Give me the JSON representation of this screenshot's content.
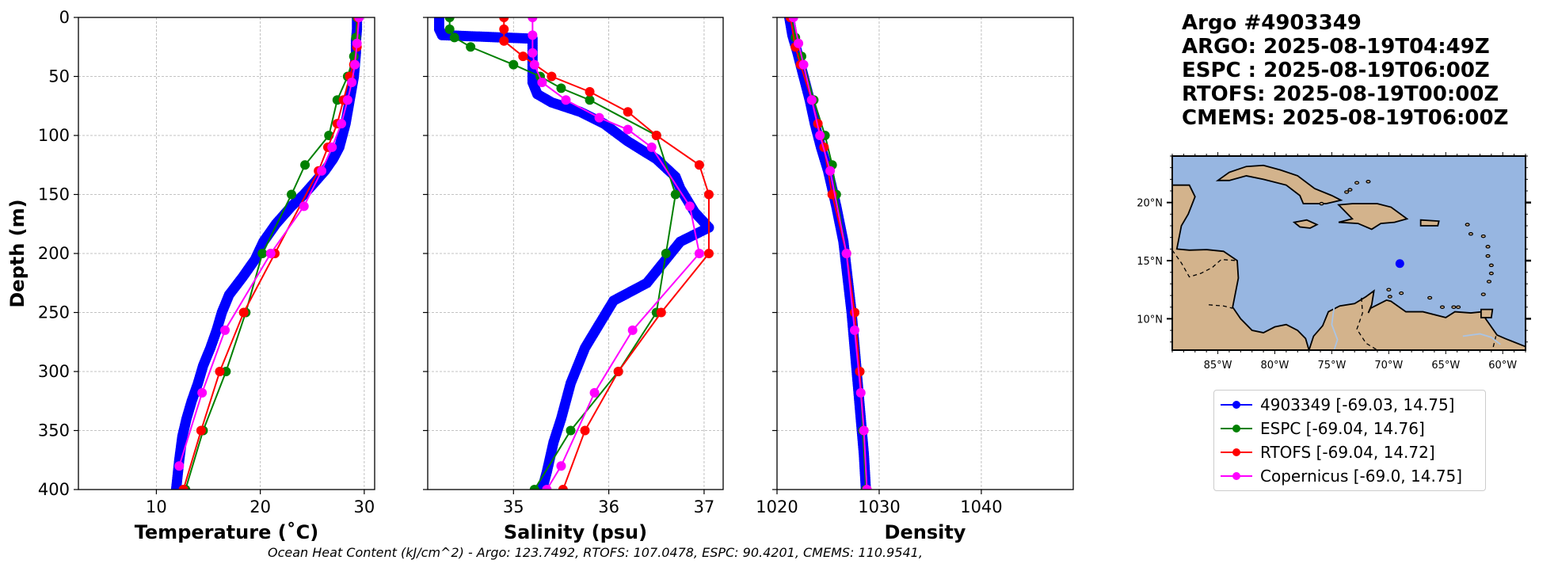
{
  "chart_data": [
    {
      "type": "line",
      "panel": "temperature",
      "xlabel": "Temperature (˚C)",
      "ylabel": "Depth (m)",
      "xlim": [
        2.5,
        31
      ],
      "ylim": [
        400,
        0
      ],
      "xticks": [
        10,
        20,
        30
      ],
      "yticks": [
        0,
        50,
        100,
        150,
        200,
        250,
        300,
        350,
        400
      ],
      "grid": true,
      "series": [
        {
          "name": "4903349",
          "color": "#0000ff",
          "markers": "dense",
          "x": [
            29.3,
            29.3,
            29.2,
            29.2,
            29.1,
            29.0,
            28.8,
            28.6,
            28.4,
            28.2,
            27.9,
            27.6,
            27.0,
            26.2,
            25.2,
            24.2,
            23.0,
            21.5,
            20.3,
            19.5,
            18.3,
            17.0,
            16.3,
            15.8,
            15.2,
            14.5,
            14.0,
            13.4,
            12.9,
            12.5,
            12.2,
            11.9
          ],
          "y": [
            0,
            10,
            20,
            30,
            40,
            50,
            60,
            70,
            80,
            90,
            100,
            110,
            120,
            130,
            140,
            150,
            160,
            175,
            190,
            205,
            220,
            235,
            250,
            265,
            280,
            295,
            310,
            325,
            340,
            355,
            375,
            400
          ]
        },
        {
          "name": "ESPC",
          "color": "#008000",
          "markers": "sparse",
          "x": [
            29.3,
            29.2,
            29.0,
            28.4,
            27.4,
            26.6,
            24.3,
            23.0,
            20.2,
            18.6,
            16.7,
            14.5,
            12.8
          ],
          "y": [
            0,
            17,
            33,
            50,
            70,
            100,
            125,
            150,
            200,
            250,
            300,
            350,
            400
          ]
        },
        {
          "name": "RTOFS",
          "color": "#ff0000",
          "markers": "sparse",
          "x": [
            29.4,
            29.3,
            29.0,
            28.6,
            28.0,
            27.4,
            26.5,
            25.6,
            21.4,
            18.4,
            16.1,
            14.3,
            12.6
          ],
          "y": [
            0,
            25,
            40,
            50,
            70,
            90,
            110,
            130,
            200,
            250,
            300,
            350,
            400
          ]
        },
        {
          "name": "Copernicus",
          "color": "#ff00ff",
          "markers": "sparse",
          "x": [
            29.5,
            29.3,
            29.1,
            28.8,
            28.4,
            27.8,
            26.9,
            25.9,
            24.2,
            21.0,
            16.6,
            14.4,
            12.2
          ],
          "y": [
            0,
            22,
            40,
            55,
            70,
            90,
            110,
            130,
            160,
            200,
            265,
            318,
            380
          ]
        }
      ]
    },
    {
      "type": "line",
      "panel": "salinity",
      "xlabel": "Salinity (psu)",
      "xlim": [
        34.1,
        37.2
      ],
      "ylim": [
        400,
        0
      ],
      "xticks": [
        35,
        36,
        37
      ],
      "grid": true,
      "series": [
        {
          "name": "4903349",
          "color": "#0000ff",
          "markers": "dense",
          "x": [
            34.22,
            34.22,
            34.25,
            35.2,
            35.2,
            35.2,
            35.25,
            35.4,
            35.7,
            35.95,
            36.2,
            36.5,
            36.7,
            36.75,
            36.9,
            37.05,
            36.75,
            36.55,
            36.4,
            36.05,
            35.9,
            35.75,
            35.6,
            35.5,
            35.42,
            35.35,
            35.3
          ],
          "y": [
            0,
            10,
            15,
            18,
            30,
            55,
            65,
            72,
            80,
            90,
            105,
            120,
            135,
            145,
            165,
            178,
            190,
            210,
            225,
            240,
            260,
            280,
            310,
            340,
            360,
            385,
            400
          ]
        },
        {
          "name": "ESPC",
          "color": "#008000",
          "markers": "sparse",
          "x": [
            34.33,
            34.33,
            34.38,
            34.55,
            35.0,
            35.28,
            35.5,
            35.8,
            36.5,
            36.7,
            36.6,
            36.5,
            36.1,
            35.6,
            35.22
          ],
          "y": [
            0,
            10,
            17,
            25,
            40,
            50,
            60,
            70,
            100,
            150,
            200,
            250,
            300,
            350,
            400
          ]
        },
        {
          "name": "RTOFS",
          "color": "#ff0000",
          "markers": "sparse",
          "x": [
            34.9,
            34.9,
            34.9,
            35.1,
            35.4,
            35.8,
            36.2,
            36.5,
            36.95,
            37.05,
            37.05,
            36.55,
            36.1,
            35.75,
            35.52
          ],
          "y": [
            0,
            10,
            20,
            33,
            50,
            63,
            80,
            100,
            125,
            150,
            200,
            250,
            300,
            350,
            400
          ]
        },
        {
          "name": "Copernicus",
          "color": "#ff00ff",
          "markers": "sparse",
          "x": [
            35.2,
            35.2,
            35.2,
            35.22,
            35.3,
            35.55,
            35.9,
            36.2,
            36.45,
            36.85,
            36.95,
            36.25,
            35.85,
            35.5,
            35.35
          ],
          "y": [
            0,
            15,
            30,
            40,
            55,
            70,
            85,
            95,
            110,
            160,
            200,
            265,
            318,
            380,
            400
          ]
        }
      ]
    },
    {
      "type": "line",
      "panel": "density",
      "xlabel": "Density",
      "xlim": [
        1020,
        1049
      ],
      "ylim": [
        400,
        0
      ],
      "xticks": [
        1020,
        1030,
        1040
      ],
      "grid": true,
      "series": [
        {
          "name": "4903349",
          "color": "#0000ff",
          "markers": "dense",
          "x": [
            1021.2,
            1021.5,
            1022.0,
            1022.6,
            1023.2,
            1023.7,
            1024.3,
            1025.0,
            1025.8,
            1026.5,
            1026.9,
            1027.3,
            1027.6,
            1027.9,
            1028.2,
            1028.5,
            1028.7
          ],
          "y": [
            0,
            15,
            30,
            50,
            70,
            90,
            110,
            130,
            160,
            190,
            220,
            250,
            280,
            310,
            340,
            370,
            400
          ]
        },
        {
          "name": "ESPC",
          "color": "#008000",
          "markers": "sparse",
          "x": [
            1021.4,
            1021.8,
            1022.4,
            1023.6,
            1024.7,
            1025.4,
            1025.8,
            1026.8,
            1027.6,
            1028.1,
            1028.4,
            1028.7
          ],
          "y": [
            0,
            17,
            33,
            70,
            100,
            125,
            150,
            200,
            250,
            300,
            350,
            400
          ]
        },
        {
          "name": "RTOFS",
          "color": "#ff0000",
          "markers": "sparse",
          "x": [
            1021.3,
            1021.8,
            1022.3,
            1023.4,
            1024.0,
            1024.6,
            1025.4,
            1026.8,
            1027.6,
            1028.1,
            1028.5,
            1028.8
          ],
          "y": [
            0,
            25,
            40,
            70,
            90,
            110,
            150,
            200,
            250,
            300,
            350,
            400
          ]
        },
        {
          "name": "Copernicus",
          "color": "#ff00ff",
          "markers": "sparse",
          "x": [
            1021.6,
            1022.1,
            1022.6,
            1023.4,
            1024.2,
            1025.2,
            1026.8,
            1027.6,
            1028.2,
            1028.5,
            1028.8
          ],
          "y": [
            0,
            22,
            40,
            70,
            100,
            130,
            200,
            265,
            318,
            350,
            400
          ]
        }
      ]
    },
    {
      "type": "map",
      "panel": "location",
      "lon_ticks": [
        "85°W",
        "80°W",
        "75°W",
        "70°W",
        "65°W",
        "60°W"
      ],
      "lat_ticks": [
        "20°N",
        "15°N",
        "10°N"
      ],
      "lon_range": [
        -89,
        -58
      ],
      "lat_range": [
        7.3,
        24
      ],
      "point": {
        "lon": -69.03,
        "lat": 14.75
      }
    }
  ],
  "info": {
    "title": "Argo #4903349",
    "lines": [
      "ARGO: 2025-08-19T04:49Z",
      "ESPC : 2025-08-19T06:00Z",
      "RTOFS: 2025-08-19T00:00Z",
      "CMEMS: 2025-08-19T06:00Z"
    ]
  },
  "legend": [
    {
      "label": "4903349 [-69.03, 14.75]",
      "color": "#0000ff"
    },
    {
      "label": "ESPC [-69.04, 14.76]",
      "color": "#008000"
    },
    {
      "label": "RTOFS [-69.04, 14.72]",
      "color": "#ff0000"
    },
    {
      "label": "Copernicus [-69.0, 14.75]",
      "color": "#ff00ff"
    }
  ],
  "colors": {
    "ocean": "#97b6e1",
    "land": "#d3b38c",
    "grid": "#b0b0b0"
  },
  "footer": "Ocean Heat Content (kJ/cm^2) - Argo: 123.7492,  RTOFS: 107.0478,  ESPC: 90.4201,  CMEMS: 110.9541,"
}
